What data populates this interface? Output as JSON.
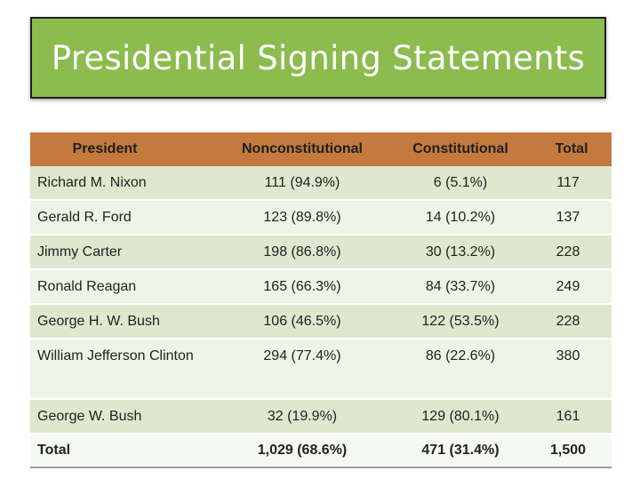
{
  "title": "Presidential Signing Statements",
  "colors": {
    "banner": "#8cbb4e",
    "header": "#c47a3c",
    "row_light": "#eef4e7",
    "row_dark": "#dde8cf"
  },
  "table": {
    "headers": {
      "president": "President",
      "nonconstitutional": "Nonconstitutional",
      "constitutional": "Constitutional",
      "total": "Total"
    },
    "rows": [
      {
        "president": "Richard M. Nixon",
        "nonconstitutional": "111 (94.9%)",
        "constitutional": "6 (5.1%)",
        "total": "117"
      },
      {
        "president": "Gerald R. Ford",
        "nonconstitutional": "123 (89.8%)",
        "constitutional": "14 (10.2%)",
        "total": "137"
      },
      {
        "president": "Jimmy Carter",
        "nonconstitutional": "198 (86.8%)",
        "constitutional": "30 (13.2%)",
        "total": "228"
      },
      {
        "president": "Ronald Reagan",
        "nonconstitutional": "165 (66.3%)",
        "constitutional": "84 (33.7%)",
        "total": "249"
      },
      {
        "president": "George H. W. Bush",
        "nonconstitutional": "106 (46.5%)",
        "constitutional": "122 (53.5%)",
        "total": "228"
      },
      {
        "president": "William Jefferson Clinton",
        "nonconstitutional": "294 (77.4%)",
        "constitutional": "86 (22.6%)",
        "total": "380"
      },
      {
        "president": "George W. Bush",
        "nonconstitutional": "32 (19.9%)",
        "constitutional": "129 (80.1%)",
        "total": "161"
      }
    ],
    "totals": {
      "label": "Total",
      "nonconstitutional": "1,029 (68.6%)",
      "constitutional": "471 (31.4%)",
      "total": "1,500"
    }
  }
}
